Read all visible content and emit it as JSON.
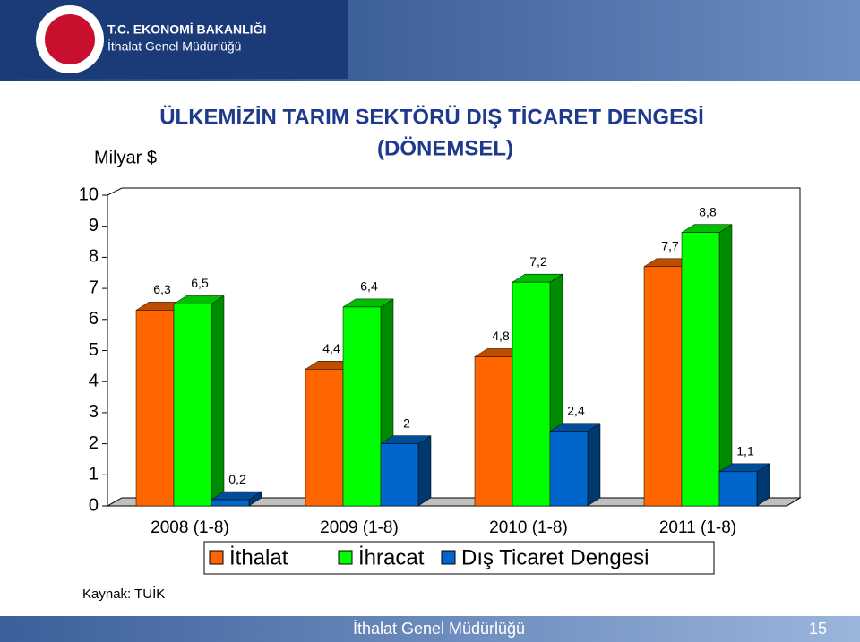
{
  "header": {
    "ministry": "T.C. EKONOMİ BAKANLIĞI",
    "department": "İthalat Genel Müdürlüğü"
  },
  "chart_data": {
    "type": "bar3d",
    "title": "ÜLKEMİZİN TARIM SEKTÖRÜ DIŞ TİCARET DENGESİ",
    "subtitle": "(DÖNEMSEL)",
    "y_label": "Milyar $",
    "categories": [
      "2008 (1-8)",
      "2009 (1-8)",
      "2010 (1-8)",
      "2011 (1-8)"
    ],
    "series": [
      {
        "name": "İthalat",
        "color": "#ff6600",
        "values": [
          6.3,
          4.4,
          4.8,
          7.7
        ],
        "value_labels": [
          "6,3",
          "4,4",
          "4,8",
          "7,7"
        ]
      },
      {
        "name": "İhracat",
        "color": "#00ff00",
        "values": [
          6.5,
          6.4,
          7.2,
          8.8
        ],
        "value_labels": [
          "6,5",
          "6,4",
          "7,2",
          "8,8"
        ]
      },
      {
        "name": "Dış Ticaret Dengesi",
        "color": "#0066cc",
        "values": [
          0.2,
          2,
          2.4,
          1.1
        ],
        "value_labels": [
          "0,2",
          "2",
          "2,4",
          "1,1"
        ]
      }
    ],
    "ylim": [
      0,
      10
    ],
    "yticks": [
      0,
      1,
      2,
      3,
      4,
      5,
      6,
      7,
      8,
      9,
      10
    ]
  },
  "source": "Kaynak: TUİK",
  "footer": {
    "department": "İthalat Genel Müdürlüğü",
    "page": "15"
  }
}
